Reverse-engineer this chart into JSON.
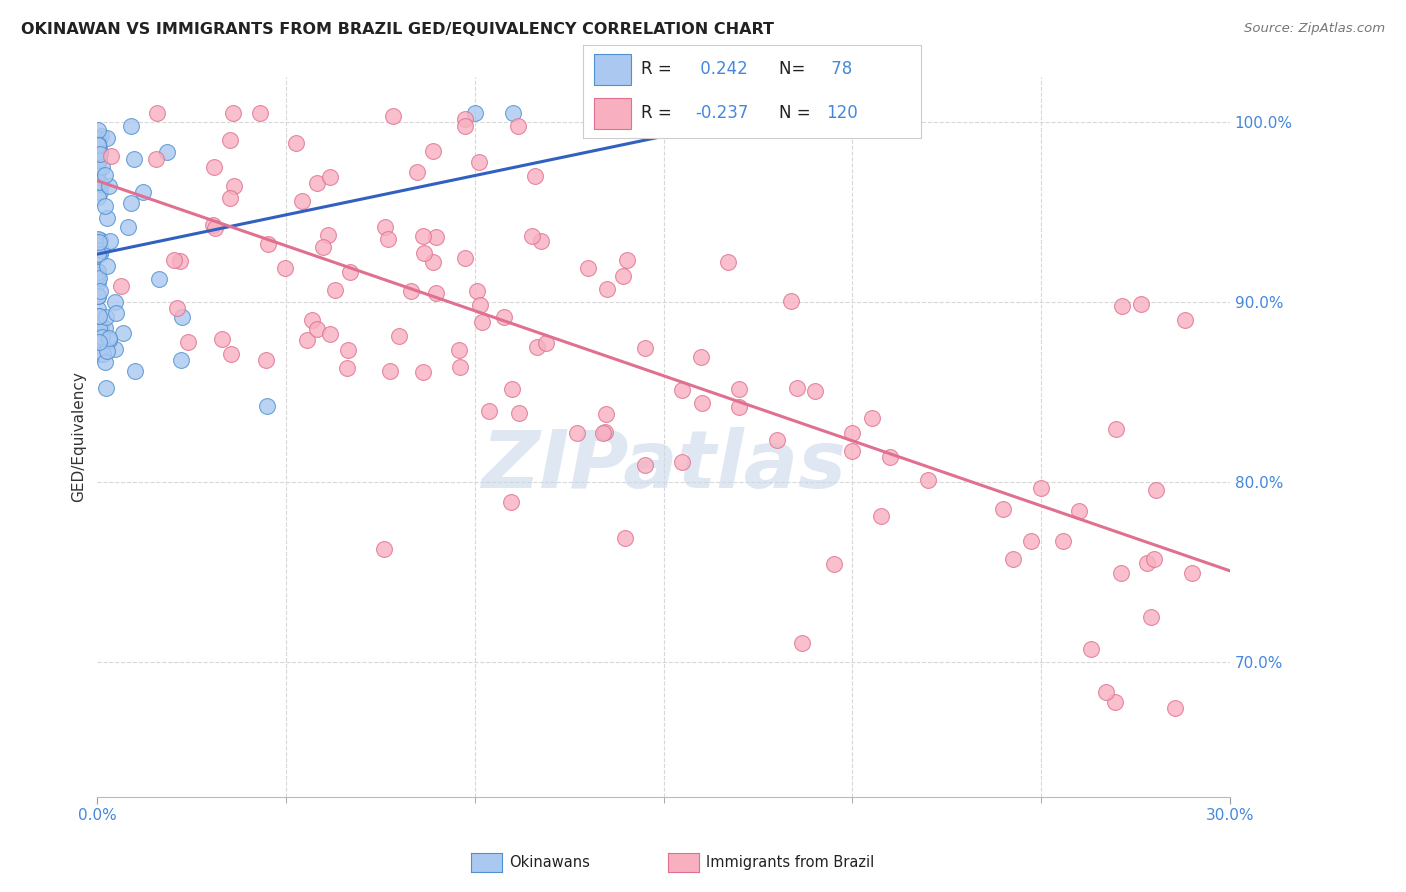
{
  "title": "OKINAWAN VS IMMIGRANTS FROM BRAZIL GED/EQUIVALENCY CORRELATION CHART",
  "source": "Source: ZipAtlas.com",
  "ylabel": "GED/Equivalency",
  "x_min": 0.0,
  "x_max": 0.3,
  "y_min": 0.625,
  "y_max": 1.025,
  "right_y_ticks": [
    0.7,
    0.8,
    0.9,
    1.0
  ],
  "right_y_labels": [
    "70.0%",
    "80.0%",
    "90.0%",
    "100.0%"
  ],
  "okinawan_R": 0.242,
  "okinawan_N": 78,
  "brazil_R": -0.237,
  "brazil_N": 120,
  "okinawan_color": "#aac8f0",
  "okinawan_edge": "#5090d0",
  "brazil_color": "#f8b0c0",
  "brazil_edge": "#e07090",
  "trend_blue": "#3060c0",
  "trend_pink": "#e07090",
  "background": "#ffffff",
  "grid_color": "#d8d8d8",
  "title_color": "#222222",
  "source_color": "#777777",
  "right_label_color": "#4488dd",
  "watermark_color": "#c8d8ea",
  "legend_R_color": "#000000",
  "legend_NRval_color": "#4488dd"
}
